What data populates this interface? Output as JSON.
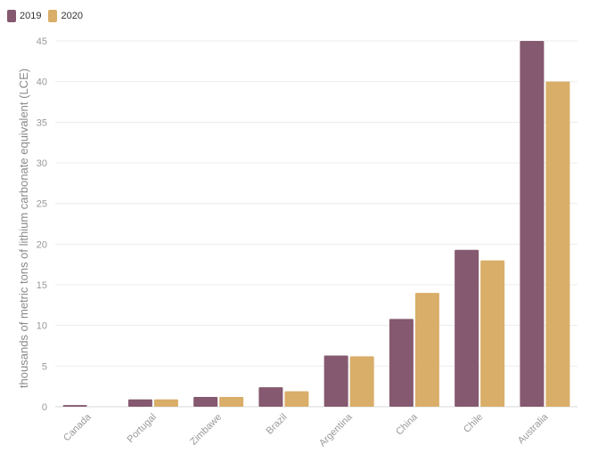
{
  "chart_data": {
    "type": "bar",
    "title": "",
    "xlabel": "",
    "ylabel": "thousands of metric tons of lithium carbonate equivalent (LCE)",
    "ylim": [
      0,
      45
    ],
    "yticks": [
      0,
      5,
      10,
      15,
      20,
      25,
      30,
      35,
      40,
      45
    ],
    "categories": [
      "Canada",
      "Portugal",
      "Zimbawe",
      "Brazil",
      "Argentina",
      "China",
      "Chile",
      "Australia"
    ],
    "series": [
      {
        "name": "2019",
        "color": "#85596f",
        "values": [
          0.2,
          0.9,
          1.2,
          2.4,
          6.3,
          10.8,
          19.3,
          45.0
        ]
      },
      {
        "name": "2020",
        "color": "#d9ae69",
        "values": [
          0.0,
          0.9,
          1.2,
          1.9,
          6.2,
          14.0,
          18.0,
          40.0
        ]
      }
    ],
    "legend_position": "top-left",
    "grid": true
  }
}
